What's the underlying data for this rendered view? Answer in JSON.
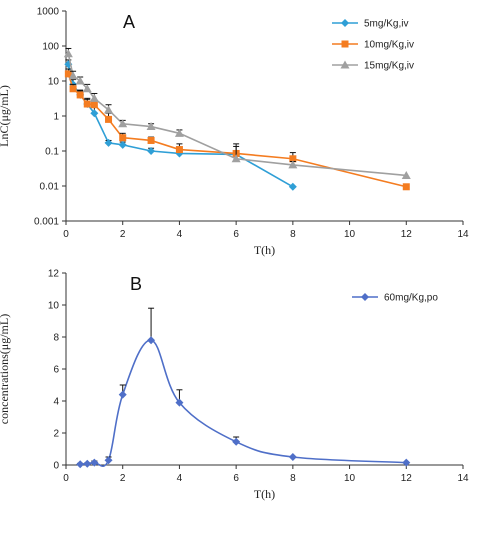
{
  "chart_data": [
    {
      "panel_label": "A",
      "type": "line",
      "xlabel": "T(h)",
      "ylabel": "LnC(μg/mL)",
      "xlim": [
        0,
        14
      ],
      "ylim": [
        0.001,
        1000
      ],
      "yscale": "log",
      "x_ticks": [
        0,
        2,
        4,
        6,
        8,
        10,
        12,
        14
      ],
      "y_ticks": [
        0.001,
        0.01,
        0.1,
        1,
        10,
        100,
        1000
      ],
      "y_tick_labels": [
        "0.001",
        "0.01",
        "0.1",
        "1",
        "10",
        "100",
        "1000"
      ],
      "legend_position": "top-right",
      "series": [
        {
          "name": "5mg/Kg,iv",
          "color": "#2f9fd6",
          "marker": "diamond",
          "x": [
            0.083,
            0.25,
            0.5,
            0.75,
            1,
            1.5,
            2,
            3,
            4,
            6,
            8
          ],
          "y": [
            30,
            8,
            4,
            2.2,
            1.2,
            0.17,
            0.15,
            0.1,
            0.085,
            0.08,
            0.0095
          ],
          "err": [
            10,
            3,
            1.2,
            1,
            0.6,
            0.03,
            0.03,
            0.02,
            0.015,
            0,
            0
          ]
        },
        {
          "name": "10mg/Kg,iv",
          "color": "#f47c20",
          "marker": "square",
          "x": [
            0.083,
            0.25,
            0.5,
            0.75,
            1,
            1.5,
            2,
            3,
            4,
            6,
            8,
            12
          ],
          "y": [
            16,
            6,
            4,
            2.2,
            2.1,
            0.8,
            0.24,
            0.2,
            0.11,
            0.085,
            0.06,
            0.0095
          ],
          "err": [
            6,
            2,
            1.5,
            0.8,
            0.8,
            0.4,
            0.08,
            0.05,
            0.05,
            0.05,
            0.03,
            0
          ]
        },
        {
          "name": "15mg/Kg,iv",
          "color": "#a0a0a0",
          "marker": "triangle",
          "x": [
            0.083,
            0.25,
            0.5,
            0.75,
            1,
            1.5,
            2,
            3,
            4,
            6,
            8,
            12
          ],
          "y": [
            60,
            14,
            10,
            6,
            3.2,
            1.5,
            0.6,
            0.5,
            0.32,
            0.06,
            0.04,
            0.02
          ],
          "err": [
            25,
            5,
            3,
            2,
            1.2,
            0.6,
            0.15,
            0.1,
            0.08,
            0.1,
            0.01,
            0
          ]
        }
      ]
    },
    {
      "panel_label": "B",
      "type": "line",
      "xlabel": "T(h)",
      "ylabel": "concentrations(μg/mL)",
      "xlim": [
        0,
        14
      ],
      "ylim": [
        0,
        12
      ],
      "x_ticks": [
        0,
        2,
        4,
        6,
        8,
        10,
        12,
        14
      ],
      "y_ticks": [
        0,
        2,
        4,
        6,
        8,
        10,
        12
      ],
      "legend_position": "top-right",
      "series": [
        {
          "name": "60mg/Kg,po",
          "color": "#4f6fc8",
          "marker": "diamond",
          "x": [
            0.5,
            0.75,
            1,
            1.5,
            2,
            3,
            4,
            6,
            8,
            12
          ],
          "y": [
            0.05,
            0.08,
            0.15,
            0.3,
            4.4,
            7.8,
            3.9,
            1.45,
            0.5,
            0.15
          ],
          "err": [
            0.05,
            0.05,
            0.1,
            0.2,
            0.6,
            2.0,
            0.8,
            0.3,
            0,
            0
          ]
        }
      ]
    }
  ]
}
